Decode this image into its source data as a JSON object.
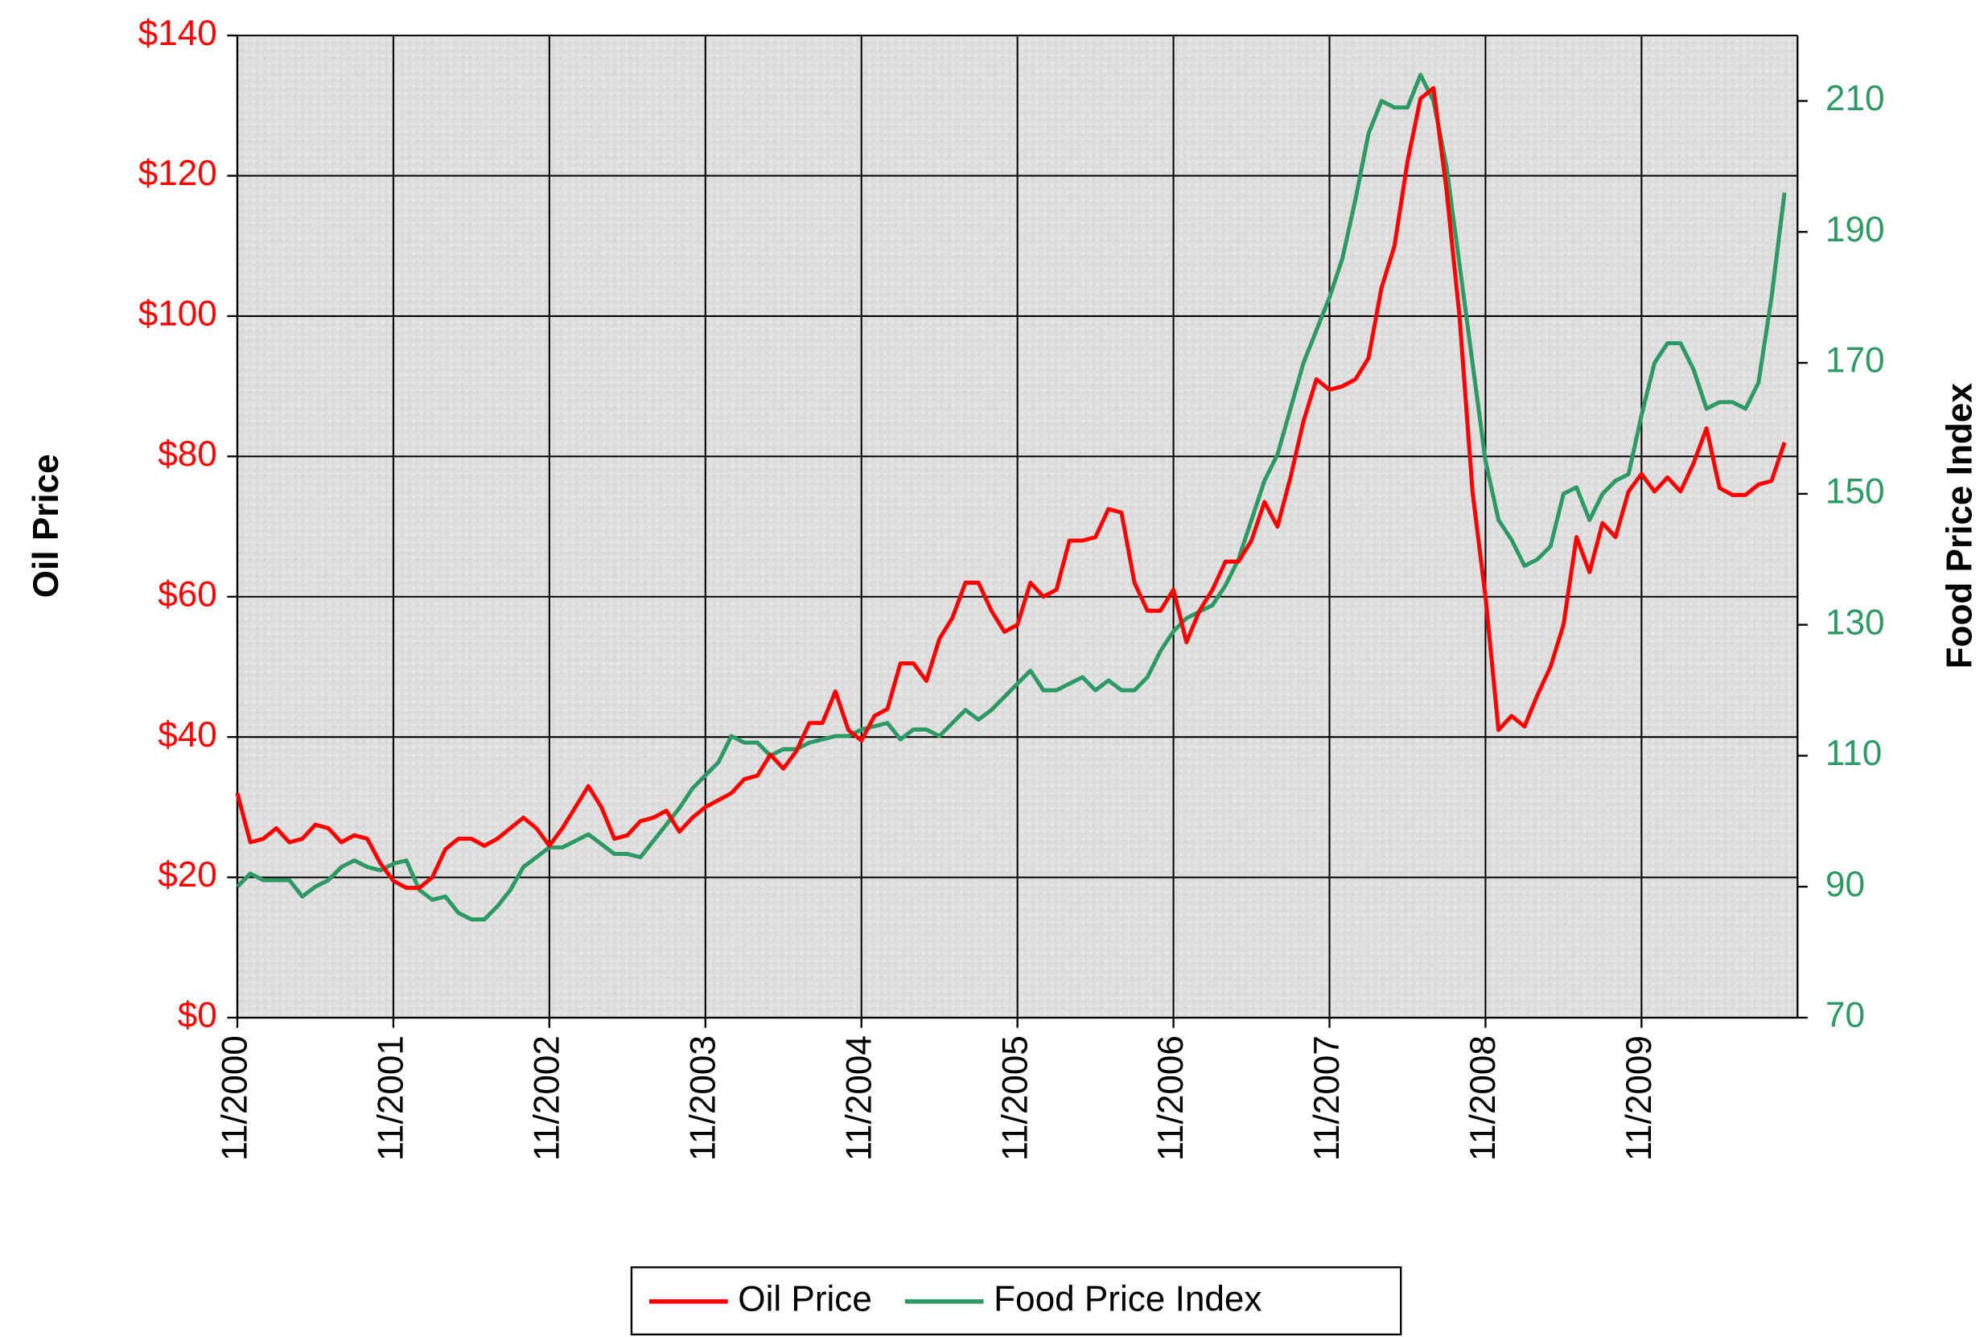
{
  "chart_data": {
    "type": "line",
    "y_label": "Oil Price",
    "y2_label": "Food Price Index",
    "categories": [
      "11/2000",
      null,
      null,
      null,
      null,
      null,
      null,
      null,
      null,
      null,
      null,
      null,
      "11/2001",
      null,
      null,
      null,
      null,
      null,
      null,
      null,
      null,
      null,
      null,
      null,
      "11/2002",
      null,
      null,
      null,
      null,
      null,
      null,
      null,
      null,
      null,
      null,
      null,
      "11/2003",
      null,
      null,
      null,
      null,
      null,
      null,
      null,
      null,
      null,
      null,
      null,
      "11/2004",
      null,
      null,
      null,
      null,
      null,
      null,
      null,
      null,
      null,
      null,
      null,
      "11/2005",
      null,
      null,
      null,
      null,
      null,
      null,
      null,
      null,
      null,
      null,
      null,
      "11/2006",
      null,
      null,
      null,
      null,
      null,
      null,
      null,
      null,
      null,
      null,
      null,
      "11/2007",
      null,
      null,
      null,
      null,
      null,
      null,
      null,
      null,
      null,
      null,
      null,
      "11/2008",
      null,
      null,
      null,
      null,
      null,
      null,
      null,
      null,
      null,
      null,
      null,
      "11/2009",
      null,
      null,
      null,
      null,
      null,
      null,
      null,
      null,
      null,
      null,
      null
    ],
    "series": [
      {
        "name": "Oil Price",
        "color": "#ff0000",
        "values": [
          32,
          25,
          25.5,
          27,
          25,
          25.5,
          27.5,
          27,
          25,
          26,
          25.5,
          22,
          19.5,
          18.5,
          18.5,
          20,
          24,
          25.5,
          25.5,
          24.5,
          25.5,
          27,
          28.5,
          27,
          24.5,
          27,
          30,
          33,
          30,
          25.5,
          26,
          28,
          28.5,
          29.5,
          26.5,
          28.5,
          30,
          31,
          32,
          34,
          34.5,
          37.5,
          35.5,
          38,
          42,
          42,
          46.5,
          41,
          39.5,
          43,
          44,
          50.5,
          50.5,
          48,
          54,
          57,
          62,
          62,
          58,
          55,
          56,
          62,
          60,
          61,
          68,
          68,
          68.5,
          72.5,
          72,
          62,
          58,
          58,
          61,
          53.5,
          58,
          61,
          65,
          65,
          68,
          73.5,
          70,
          77,
          85,
          91,
          89.5,
          90,
          91,
          94,
          104,
          110,
          122,
          131,
          132.5,
          118,
          100,
          75,
          60,
          41,
          43,
          41.5,
          46,
          50,
          56,
          68.5,
          63.5,
          70.5,
          68.5,
          75,
          77.5,
          75,
          77,
          75,
          79,
          84,
          75.5,
          74.5,
          74.5,
          76,
          76.5,
          82
        ]
      },
      {
        "name": "Food Price Index",
        "color": "#2e9a63",
        "axis": "y2",
        "values": [
          90,
          92,
          91,
          91,
          91,
          88.5,
          90,
          91,
          93,
          94,
          93,
          92.5,
          93.5,
          94,
          89.5,
          88,
          88.5,
          86,
          85,
          85,
          87,
          89.5,
          93,
          94.5,
          96,
          96,
          97,
          98,
          96.5,
          95,
          95,
          94.5,
          97,
          99.5,
          102,
          105,
          107,
          109,
          113,
          112,
          112,
          110,
          111,
          111,
          112,
          112.5,
          113,
          113,
          114,
          114.5,
          115,
          112.5,
          114,
          114,
          113,
          115,
          117,
          115.5,
          117,
          119,
          121,
          123,
          120,
          120,
          121,
          122,
          120,
          121.5,
          120,
          120,
          122,
          126,
          129,
          131,
          132,
          133,
          136,
          140,
          146,
          152,
          156,
          163,
          170,
          175,
          180,
          186,
          195,
          205,
          210,
          209,
          209,
          214,
          210,
          200,
          185,
          170,
          155,
          146,
          143,
          139,
          140,
          142,
          150,
          151,
          146,
          150,
          152,
          153,
          162,
          170,
          173,
          173,
          169,
          163,
          164,
          164,
          163,
          167,
          180,
          196
        ]
      }
    ],
    "ylim": [
      0,
      140
    ],
    "yticks": [
      {
        "value": 0,
        "label": "$0"
      },
      {
        "value": 20,
        "label": "$20"
      },
      {
        "value": 40,
        "label": "$40"
      },
      {
        "value": 60,
        "label": "$60"
      },
      {
        "value": 80,
        "label": "$80"
      },
      {
        "value": 100,
        "label": "$100"
      },
      {
        "value": 120,
        "label": "$120"
      },
      {
        "value": 140,
        "label": "$140"
      }
    ],
    "y2lim": [
      70,
      220
    ],
    "y2ticks": [
      70,
      90,
      110,
      130,
      150,
      170,
      190,
      210
    ],
    "y_color": "#ff0000",
    "y2_color": "#2e9a63",
    "grid": true,
    "legend": "bottom"
  }
}
